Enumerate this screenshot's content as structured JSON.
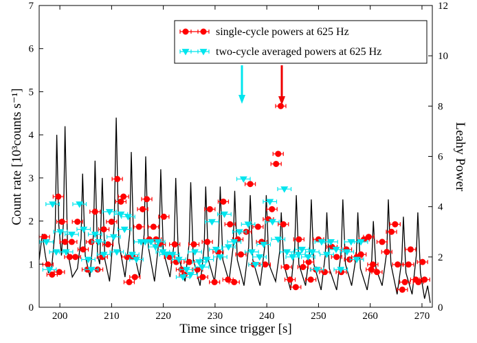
{
  "chart_data": {
    "type": "line",
    "xlabel": "Time since trigger [s]",
    "ylabel": "Count rate [10³counts s⁻¹]",
    "y2label": "Leahy Power",
    "xlim": [
      196,
      272
    ],
    "ylim": [
      0,
      7
    ],
    "y2lim": [
      0,
      12
    ],
    "xticks": [
      200,
      210,
      220,
      230,
      240,
      250,
      260,
      270
    ],
    "yticks": [
      0,
      1,
      2,
      3,
      4,
      5,
      6,
      7
    ],
    "y2ticks": [
      0,
      2,
      4,
      6,
      8,
      10,
      12
    ],
    "legend": "upper right",
    "series": [
      {
        "type": "line",
        "color": "#000000",
        "x": [
          196.0,
          196.6,
          197.2,
          197.8,
          198.4,
          199.1,
          199.4,
          199.8,
          200.3,
          200.7,
          201.0,
          201.5,
          202.4,
          203.4,
          204.1,
          204.4,
          204.9,
          205.8,
          206.5,
          206.8,
          207.3,
          207.7,
          207.9,
          208.2,
          208.7,
          209.6,
          210.5,
          210.9,
          211.4,
          212.6,
          213.5,
          213.8,
          214.3,
          215.4,
          216.3,
          216.6,
          217.1,
          218.3,
          219.2,
          219.5,
          220.0,
          221.3,
          222.1,
          222.4,
          222.9,
          224.2,
          225.0,
          225.3,
          225.8,
          227.1,
          227.9,
          228.2,
          228.7,
          229.9,
          230.7,
          231.0,
          231.5,
          232.7,
          233.5,
          233.8,
          234.3,
          235.6,
          236.5,
          236.8,
          237.3,
          238.7,
          239.6,
          239.9,
          240.4,
          241.7,
          242.5,
          242.8,
          243.3,
          244.6,
          245.4,
          245.7,
          246.2,
          247.5,
          248.3,
          248.6,
          249.1,
          250.5,
          251.3,
          251.6,
          252.1,
          253.5,
          254.4,
          254.7,
          255.2,
          256.4,
          257.3,
          257.6,
          258.1,
          259.4,
          260.3,
          260.6,
          261.1,
          262.3,
          263.2,
          263.5,
          264.0,
          265.2,
          266.1,
          266.4,
          266.9,
          268.1,
          268.9,
          269.2,
          269.7,
          270.5,
          271.1,
          271.6
        ],
        "values": [
          1.1,
          1.7,
          1.2,
          0.8,
          0.9,
          1.8,
          4.0,
          1.9,
          1.2,
          2.0,
          4.2,
          1.3,
          0.7,
          0.9,
          1.6,
          3.1,
          1.2,
          0.7,
          1.7,
          3.4,
          1.2,
          1.0,
          1.8,
          3.0,
          1.1,
          0.6,
          1.9,
          4.4,
          1.5,
          0.7,
          1.7,
          3.6,
          1.3,
          0.7,
          1.7,
          3.5,
          1.4,
          0.6,
          1.6,
          3.2,
          1.3,
          0.7,
          1.5,
          3.0,
          1.2,
          0.6,
          1.5,
          2.9,
          1.1,
          0.5,
          1.4,
          2.8,
          1.1,
          0.6,
          1.5,
          2.8,
          1.1,
          0.6,
          1.4,
          2.7,
          1.1,
          0.5,
          1.4,
          2.6,
          1.1,
          0.5,
          1.4,
          2.6,
          1.0,
          0.6,
          1.3,
          2.2,
          1.0,
          0.4,
          1.4,
          2.6,
          1.0,
          0.5,
          1.3,
          2.5,
          1.0,
          0.4,
          1.2,
          2.2,
          0.9,
          0.4,
          1.3,
          2.5,
          1.0,
          0.5,
          1.2,
          2.2,
          0.9,
          0.4,
          1.1,
          2.0,
          0.9,
          0.5,
          1.3,
          2.5,
          1.0,
          0.3,
          1.1,
          2.1,
          0.8,
          0.3,
          1.2,
          2.2,
          0.8,
          0.2,
          0.5,
          0.1
        ]
      },
      {
        "type": "scatter",
        "name": "single-cycle powers at 625 Hz",
        "color": "#ff0000",
        "marker": "circle",
        "axis": "y2",
        "xerr": 1.0,
        "x": [
          197.0,
          197.7,
          198.5,
          199.7,
          199.9,
          200.4,
          201.0,
          201.9,
          202.3,
          203.0,
          203.4,
          204.5,
          205.3,
          206.1,
          206.8,
          207.3,
          208.2,
          208.5,
          209.3,
          210.0,
          211.1,
          211.8,
          212.3,
          213.0,
          213.4,
          214.0,
          214.5,
          215.3,
          216.0,
          216.8,
          217.3,
          218.1,
          218.6,
          219.4,
          220.1,
          221.2,
          222.2,
          222.5,
          223.5,
          224.1,
          225.0,
          225.9,
          226.6,
          227.6,
          228.5,
          229.0,
          229.9,
          230.6,
          231.6,
          232.5,
          232.9,
          233.7,
          234.4,
          235.0,
          236.0,
          236.8,
          237.5,
          238.3,
          239.0,
          239.7,
          240.3,
          241.0,
          241.8,
          242.2,
          242.7,
          243.2,
          243.8,
          244.5,
          245.6,
          246.2,
          247.0,
          248.1,
          248.5,
          249.5,
          250.0,
          251.2,
          252.6,
          253.5,
          254.4,
          255.4,
          256.0,
          257.4,
          258.2,
          258.8,
          259.7,
          260.2,
          260.5,
          261.3,
          262.3,
          263.2,
          264.1,
          264.8,
          265.3,
          266.2,
          266.7,
          267.4,
          267.8,
          268.8,
          269.3,
          270.1,
          270.5
        ],
        "values": [
          2.8,
          1.7,
          1.3,
          4.4,
          1.4,
          3.4,
          2.6,
          2.0,
          2.6,
          2.0,
          3.4,
          2.3,
          1.5,
          2.6,
          3.8,
          1.5,
          2.0,
          3.1,
          2.5,
          3.4,
          5.1,
          4.2,
          4.4,
          2.0,
          1.0,
          2.0,
          1.2,
          3.2,
          3.9,
          4.3,
          2.7,
          3.2,
          2.7,
          2.5,
          3.6,
          2.0,
          2.5,
          1.8,
          1.5,
          1.3,
          1.8,
          2.5,
          1.5,
          1.2,
          2.6,
          3.9,
          1.0,
          2.2,
          4.2,
          1.1,
          3.3,
          1.0,
          2.7,
          2.1,
          3.0,
          4.9,
          1.7,
          3.2,
          2.6,
          1.7,
          3.5,
          3.9,
          5.7,
          6.1,
          8.0,
          3.3,
          1.6,
          1.1,
          0.8,
          2.7,
          1.6,
          1.8,
          1.1,
          1.5,
          2.7,
          1.4,
          2.4,
          2.0,
          1.4,
          2.3,
          1.9,
          2.0,
          2.1,
          2.7,
          2.8,
          1.5,
          1.7,
          1.4,
          2.6,
          2.2,
          3.0,
          3.3,
          1.7,
          0.7,
          1.0,
          1.7,
          2.3,
          1.1,
          1.0,
          1.8,
          1.1
        ]
      },
      {
        "type": "scatter",
        "name": "two-cycle averaged powers at 625 Hz",
        "color": "#00e5ee",
        "marker": "triangle-down",
        "axis": "y2",
        "xerr": 1.3,
        "x": [
          197.4,
          198.0,
          198.6,
          199.3,
          200.1,
          201.2,
          202.3,
          203.8,
          204.6,
          205.5,
          206.1,
          206.8,
          207.5,
          208.5,
          209.6,
          210.4,
          211.0,
          211.8,
          212.5,
          213.2,
          214.0,
          214.8,
          215.7,
          216.5,
          217.6,
          218.5,
          219.0,
          219.9,
          220.6,
          221.8,
          223.0,
          223.8,
          224.5,
          225.3,
          226.1,
          226.9,
          227.5,
          228.4,
          229.4,
          230.2,
          231.0,
          231.8,
          232.6,
          233.7,
          234.7,
          235.5,
          236.4,
          237.1,
          237.8,
          238.6,
          239.4,
          240.6,
          241.1,
          242.2,
          243.4,
          243.9,
          245.0,
          246.1,
          246.8,
          248.0,
          248.8,
          249.7,
          250.6,
          251.6,
          252.4,
          253.4,
          254.3,
          255.5,
          256.3,
          257.4,
          258.2
        ],
        "values": [
          2.6,
          1.5,
          4.1,
          2.2,
          3.0,
          2.2,
          2.9,
          4.1,
          3.1,
          1.9,
          1.5,
          2.9,
          2.6,
          2.1,
          3.8,
          2.8,
          2.2,
          3.7,
          3.1,
          3.6,
          2.1,
          1.9,
          2.6,
          2.6,
          2.6,
          2.4,
          2.6,
          2.2,
          2.1,
          2.1,
          1.9,
          1.2,
          1.5,
          1.3,
          2.2,
          1.8,
          1.6,
          1.9,
          3.4,
          2.3,
          2.0,
          3.7,
          2.4,
          2.6,
          3.0,
          5.1,
          3.3,
          2.2,
          1.7,
          2.0,
          2.5,
          4.2,
          3.4,
          2.7,
          4.7,
          2.2,
          2.0,
          2.1,
          2.3,
          2.0,
          2.2,
          1.5,
          2.6,
          2.1,
          2.6,
          2.3,
          1.5,
          2.2,
          2.6,
          1.9,
          2.6
        ]
      }
    ]
  }
}
